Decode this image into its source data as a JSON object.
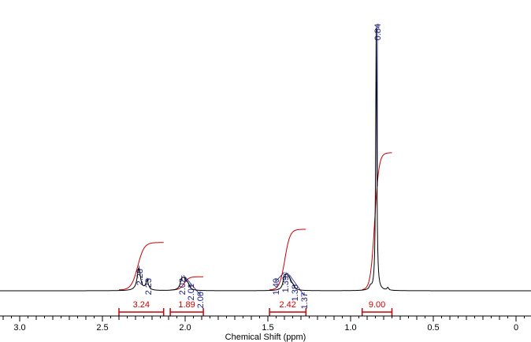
{
  "chart_data": {
    "type": "line",
    "title": "",
    "xlabel": "Chemical Shift (ppm)",
    "ylabel": "",
    "xlim": [
      3.1,
      -0.1
    ],
    "x_reversed": true,
    "ticks": [
      {
        "value": 3.0,
        "label": "3.0"
      },
      {
        "value": 2.5,
        "label": "2.5"
      },
      {
        "value": 2.0,
        "label": "2.0"
      },
      {
        "value": 1.5,
        "label": "1.5"
      },
      {
        "value": 1.0,
        "label": "1.0"
      },
      {
        "value": 0.5,
        "label": "0.5"
      },
      {
        "value": 0.0,
        "label": "0"
      }
    ],
    "peak_labels": [
      {
        "ppm": 2.28,
        "text": "2.28"
      },
      {
        "ppm": 2.23,
        "text": "2.23"
      },
      {
        "ppm": 2.02,
        "text": "2.02"
      },
      {
        "ppm": 2.01,
        "text": "2.01"
      },
      {
        "ppm": 2.0,
        "text": "2.00"
      },
      {
        "ppm": 1.4,
        "text": "1.40"
      },
      {
        "ppm": 1.39,
        "text": "1.39"
      },
      {
        "ppm": 1.38,
        "text": "1.38"
      },
      {
        "ppm": 1.37,
        "text": "1.37"
      },
      {
        "ppm": 0.84,
        "text": "0.84"
      }
    ],
    "peaks": [
      {
        "ppm": 0.845,
        "height": 1.0,
        "width": 0.004
      },
      {
        "ppm": 2.28,
        "height": 0.085,
        "width": 0.012
      },
      {
        "ppm": 2.23,
        "height": 0.035,
        "width": 0.01
      },
      {
        "ppm": 2.02,
        "height": 0.035,
        "width": 0.012
      },
      {
        "ppm": 2.005,
        "height": 0.03,
        "width": 0.012
      },
      {
        "ppm": 1.985,
        "height": 0.022,
        "width": 0.012
      },
      {
        "ppm": 1.4,
        "height": 0.045,
        "width": 0.01
      },
      {
        "ppm": 1.385,
        "height": 0.04,
        "width": 0.01
      },
      {
        "ppm": 1.37,
        "height": 0.03,
        "width": 0.01
      },
      {
        "ppm": 1.35,
        "height": 0.018,
        "width": 0.012
      },
      {
        "ppm": 0.88,
        "height": 0.012,
        "width": 0.008
      },
      {
        "ppm": 0.775,
        "height": 0.01,
        "width": 0.006
      }
    ],
    "integrals": [
      {
        "from": 2.4,
        "to": 2.13,
        "value": "3.24",
        "rise": 0.18
      },
      {
        "from": 2.09,
        "to": 1.89,
        "value": "1.89",
        "rise": 0.05
      },
      {
        "from": 1.49,
        "to": 1.27,
        "value": "2.42",
        "rise": 0.23
      },
      {
        "from": 0.93,
        "to": 0.75,
        "value": "9.00",
        "rise": 0.52
      }
    ],
    "colors": {
      "spectrum": "#000000",
      "integral": "#cc0000",
      "peak_label": "#1a1a80",
      "axis": "#000000"
    }
  }
}
